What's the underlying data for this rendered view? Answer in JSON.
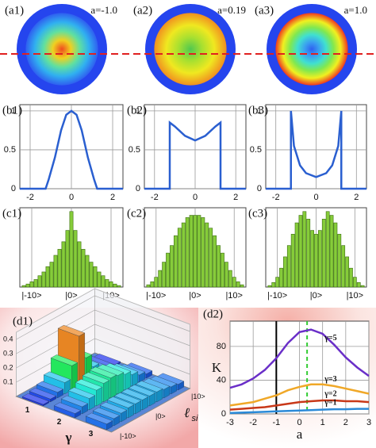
{
  "chart_data": [
    {
      "type": "disk",
      "label": "(a1)",
      "annotation": "a=-1.0",
      "colors": [
        "#f04a20",
        "#f0d020",
        "#60e0a0",
        "#30b0f0",
        "#2f5ff0"
      ],
      "ring_color": "#2545ee"
    },
    {
      "type": "disk",
      "label": "(a2)",
      "annotation": "a=0.19",
      "colors": [
        "#50c850",
        "#a8e030",
        "#f0e820",
        "#f09020"
      ],
      "ring_color": "#2545ee"
    },
    {
      "type": "disk",
      "label": "(a3)",
      "annotation": "a=1.0",
      "colors": [
        "#2f60f0",
        "#3aa0f0",
        "#40e0d0",
        "#80e850",
        "#f0f020",
        "#f03820"
      ],
      "ring_color": "#2545ee"
    },
    {
      "type": "line",
      "label": "(b1)",
      "color": "#2a5fd0",
      "xlim": [
        -2.5,
        2.5
      ],
      "ylim": [
        0,
        1.08
      ],
      "xticks": [
        -2,
        0,
        2
      ],
      "yticks": [
        0,
        0.5,
        1
      ],
      "x": [
        -2.5,
        -1.25,
        -1.1,
        -0.8,
        -0.5,
        -0.25,
        0,
        0.25,
        0.5,
        0.8,
        1.1,
        1.25,
        2.5
      ],
      "values": [
        0,
        0,
        0.12,
        0.4,
        0.75,
        0.95,
        1,
        0.95,
        0.75,
        0.4,
        0.12,
        0,
        0
      ]
    },
    {
      "type": "line",
      "label": "(b2)",
      "color": "#2a5fd0",
      "xlim": [
        -2.5,
        2.5
      ],
      "ylim": [
        0,
        1.08
      ],
      "xticks": [
        -2,
        0,
        2
      ],
      "yticks": [
        0,
        0.5,
        1
      ],
      "x": [
        -2.5,
        -1.25,
        -1.25,
        -1.0,
        -0.5,
        0,
        0.5,
        1.0,
        1.25,
        1.25,
        2.5
      ],
      "values": [
        0,
        0,
        0.85,
        0.8,
        0.68,
        0.62,
        0.68,
        0.8,
        0.85,
        0,
        0
      ]
    },
    {
      "type": "line",
      "label": "(b3)",
      "color": "#2a5fd0",
      "xlim": [
        -2.5,
        2.5
      ],
      "ylim": [
        0,
        1.08
      ],
      "xticks": [
        -2,
        0,
        2
      ],
      "yticks": [
        0,
        0.5,
        1
      ],
      "x": [
        -2.5,
        -1.25,
        -1.25,
        -1.1,
        -0.8,
        -0.5,
        0,
        0.5,
        0.8,
        1.1,
        1.25,
        1.25,
        2.5
      ],
      "values": [
        0,
        0,
        1.0,
        0.55,
        0.3,
        0.2,
        0.15,
        0.2,
        0.3,
        0.55,
        1.0,
        0,
        0
      ]
    },
    {
      "type": "hist",
      "label": "(c1)",
      "color": "#86cc3a",
      "xlim": [
        -13,
        13
      ],
      "ylim": [
        0,
        1.05
      ],
      "grid": true,
      "xticks": [
        {
          "value": -10,
          "label": "|-10>"
        },
        {
          "value": 0,
          "label": "|0>"
        },
        {
          "value": 10,
          "label": "|10>"
        }
      ],
      "x": [
        -12,
        -11,
        -10,
        -9,
        -8,
        -7,
        -6,
        -5,
        -4,
        -3,
        -2,
        -1,
        0,
        1,
        2,
        3,
        4,
        5,
        6,
        7,
        8,
        9,
        10,
        11,
        12
      ],
      "values": [
        0.02,
        0.04,
        0.07,
        0.1,
        0.15,
        0.2,
        0.27,
        0.33,
        0.42,
        0.5,
        0.6,
        0.75,
        1.0,
        0.75,
        0.6,
        0.5,
        0.42,
        0.33,
        0.27,
        0.2,
        0.15,
        0.1,
        0.07,
        0.04,
        0.02
      ]
    },
    {
      "type": "hist",
      "label": "(c2)",
      "color": "#86cc3a",
      "xlim": [
        -13,
        13
      ],
      "ylim": [
        0,
        1.05
      ],
      "grid": true,
      "xticks": [
        {
          "value": -10,
          "label": "|-10>"
        },
        {
          "value": 0,
          "label": "|0>"
        },
        {
          "value": 10,
          "label": "|10>"
        }
      ],
      "x": [
        -12,
        -11,
        -10,
        -9,
        -8,
        -7,
        -6,
        -5,
        -4,
        -3,
        -2,
        -1,
        0,
        1,
        2,
        3,
        4,
        5,
        6,
        7,
        8,
        9,
        10,
        11,
        12
      ],
      "values": [
        0.03,
        0.07,
        0.13,
        0.22,
        0.33,
        0.45,
        0.55,
        0.68,
        0.78,
        0.85,
        0.92,
        0.95,
        0.95,
        0.95,
        0.92,
        0.85,
        0.78,
        0.68,
        0.55,
        0.45,
        0.33,
        0.22,
        0.13,
        0.07,
        0.03
      ]
    },
    {
      "type": "hist",
      "label": "(c3)",
      "color": "#86cc3a",
      "xlim": [
        -13,
        13
      ],
      "ylim": [
        0,
        1.05
      ],
      "grid": true,
      "xticks": [
        {
          "value": -10,
          "label": "|-10>"
        },
        {
          "value": 0,
          "label": "|0>"
        },
        {
          "value": 10,
          "label": "|10>"
        }
      ],
      "x": [
        -12,
        -11,
        -10,
        -9,
        -8,
        -7,
        -6,
        -5,
        -4,
        -3,
        -2,
        -1,
        0,
        1,
        2,
        3,
        4,
        5,
        6,
        7,
        8,
        9,
        10,
        11,
        12
      ],
      "values": [
        0.02,
        0.06,
        0.13,
        0.25,
        0.4,
        0.55,
        0.7,
        0.85,
        0.95,
        1.0,
        0.9,
        0.75,
        0.7,
        0.75,
        0.9,
        1.0,
        0.95,
        0.85,
        0.7,
        0.55,
        0.4,
        0.25,
        0.13,
        0.06,
        0.02
      ]
    },
    {
      "type": "bar3d",
      "label": "(d1)",
      "ylabel": "γ",
      "xlabel": "ℓ",
      "xlabel_sub": "si",
      "gamma": [
        1,
        2,
        3
      ],
      "x": [
        -10,
        -8,
        -6,
        -4,
        -2,
        0,
        2,
        4,
        6,
        8,
        10
      ],
      "xticks": [
        {
          "value": -10,
          "label": "|-10>"
        },
        {
          "value": 0,
          "label": "|0>"
        },
        {
          "value": 10,
          "label": "|10>"
        }
      ],
      "zlim": [
        0,
        0.45
      ],
      "zticks": [
        0.1,
        0.2,
        0.3,
        0.4
      ],
      "series": [
        {
          "name": "1",
          "values": [
            0.01,
            0.02,
            0.04,
            0.08,
            0.17,
            0.35,
            0.17,
            0.08,
            0.04,
            0.02,
            0.01
          ]
        },
        {
          "name": "2",
          "values": [
            0.03,
            0.05,
            0.08,
            0.11,
            0.13,
            0.14,
            0.13,
            0.11,
            0.08,
            0.05,
            0.03
          ]
        },
        {
          "name": "3",
          "values": [
            0.04,
            0.05,
            0.06,
            0.07,
            0.07,
            0.07,
            0.07,
            0.07,
            0.06,
            0.05,
            0.04
          ]
        }
      ]
    },
    {
      "type": "multiline",
      "label": "(d2)",
      "xlabel": "a",
      "ylabel": "K",
      "xlim": [
        -3,
        3
      ],
      "ylim": [
        0,
        110
      ],
      "xticks": [
        -3,
        -2,
        -1,
        0,
        1,
        2,
        3
      ],
      "yticks": [
        0,
        40,
        80
      ],
      "grid": true,
      "vlines": [
        {
          "x": -1,
          "color": "#000000",
          "dash": false
        },
        {
          "x": 0.33,
          "color": "#33cc33",
          "dash": true
        }
      ],
      "x": [
        -3,
        -2.5,
        -2,
        -1.5,
        -1,
        -0.5,
        0,
        0.5,
        1,
        1.5,
        2,
        2.5,
        3
      ],
      "series": [
        {
          "name": "γ=5",
          "color": "#6a2fc8",
          "values": [
            31,
            35,
            42,
            52,
            66,
            84,
            97,
            100,
            95,
            82,
            67,
            55,
            45
          ]
        },
        {
          "name": "γ=3",
          "color": "#f0a828",
          "values": [
            10,
            12,
            14,
            18,
            22,
            28,
            32,
            35,
            35,
            33,
            30,
            27,
            24
          ]
        },
        {
          "name": "γ=2",
          "color": "#c83818",
          "values": [
            5,
            6,
            7,
            8,
            10,
            12,
            14,
            15,
            16,
            16,
            15,
            15,
            14
          ]
        },
        {
          "name": "γ=1",
          "color": "#2a8ad8",
          "values": [
            1,
            1.5,
            2,
            2.5,
            3,
            3.5,
            4,
            4.5,
            5,
            5.5,
            5.5,
            6,
            6
          ]
        }
      ]
    }
  ]
}
